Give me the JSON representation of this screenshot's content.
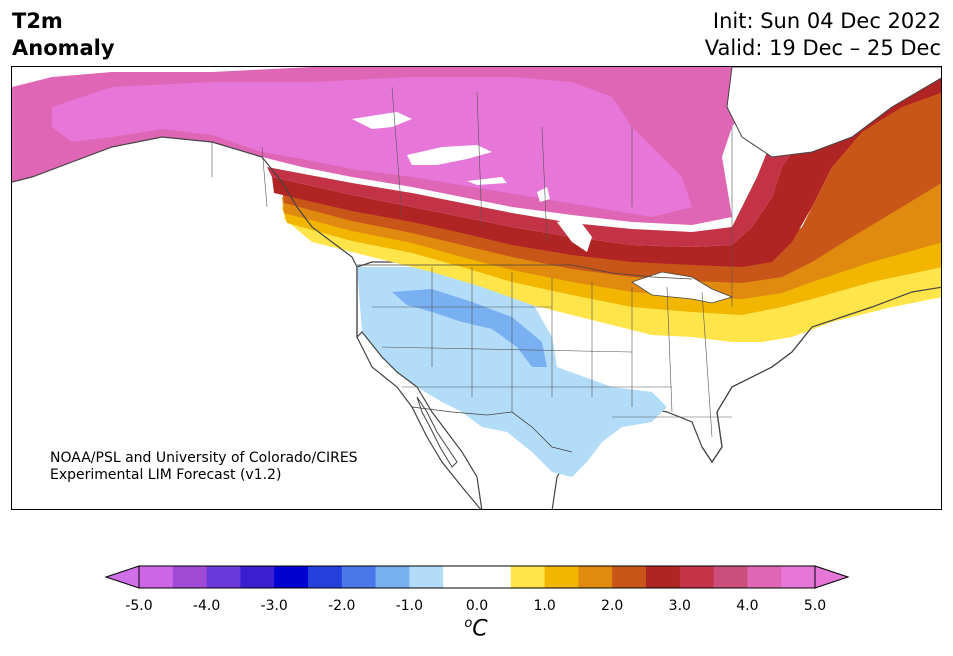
{
  "title": {
    "line1": "T2m",
    "line2": "Anomaly"
  },
  "info": {
    "init": "Init: Sun 04 Dec 2022",
    "valid": "Valid: 19 Dec – 25 Dec"
  },
  "credit": {
    "line1": "NOAA/PSL and University of Colorado/CIRES",
    "line2": "Experimental LIM Forecast (v1.2)"
  },
  "colorbar": {
    "unit_sup": "o",
    "unit_main": "C",
    "ticks": [
      "-5.0",
      "-4.0",
      "-3.0",
      "-2.0",
      "-1.0",
      "0.0",
      "1.0",
      "2.0",
      "3.0",
      "4.0",
      "5.0"
    ],
    "colors": [
      "#cc66e6",
      "#a04ad6",
      "#6a38dc",
      "#3a1ecf",
      "#0000d0",
      "#2440dc",
      "#4a78e8",
      "#78b0f2",
      "#b2dcf8",
      "#ffffff",
      "#ffffff",
      "#ffe44a",
      "#f2b600",
      "#e08a10",
      "#c85618",
      "#b02424",
      "#c43246",
      "#cc4e7a",
      "#de66b4",
      "#e676d8"
    ],
    "under_color": "#d070e8",
    "over_color": "#e676d8"
  }
}
